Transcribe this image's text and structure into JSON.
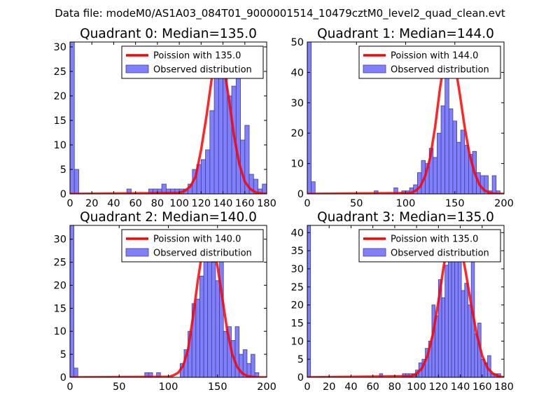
{
  "figure": {
    "suptitle": "Data file: modeM0/AS1A03_084T01_9000001514_10479cztM0_level2_quad_clean.evt"
  },
  "colors": {
    "bar_fill": "#8080ff",
    "bar_edge": "#3f3f8f",
    "curve": "#ff0000",
    "axes": "#000000",
    "background": "#ffffff"
  },
  "chart_data": [
    {
      "type": "bar",
      "title": "Quadrant 0: Median=135.0",
      "xlim": [
        0,
        180
      ],
      "ylim": [
        0,
        31
      ],
      "xticks": [
        0,
        20,
        40,
        60,
        80,
        100,
        120,
        140,
        160,
        180
      ],
      "yticks": [
        0,
        5,
        10,
        15,
        20,
        25,
        30
      ],
      "legend": {
        "position": "upper-right",
        "curve_label": "Poission with 135.0",
        "bars_label": "Observed distribution"
      },
      "bin_width": 4,
      "histogram": {
        "x": [
          0,
          4,
          52,
          56,
          60,
          64,
          68,
          72,
          76,
          80,
          84,
          88,
          92,
          96,
          100,
          104,
          108,
          112,
          116,
          120,
          124,
          128,
          132,
          136,
          140,
          144,
          148,
          152,
          156,
          160,
          164,
          168,
          172,
          176
        ],
        "y": [
          31,
          5,
          1,
          0,
          0,
          0,
          0,
          1,
          1,
          1,
          2,
          1,
          1,
          1,
          1,
          1,
          2,
          5,
          6,
          7,
          9,
          17,
          25,
          30,
          26,
          20,
          22,
          24,
          11,
          14,
          4,
          3,
          1,
          2
        ]
      },
      "curve": {
        "x": [
          0,
          100,
          105,
          110,
          115,
          120,
          125,
          130,
          135,
          140,
          145,
          150,
          155,
          160,
          165,
          170,
          175,
          180
        ],
        "y": [
          0,
          0.2,
          0.6,
          1.5,
          3.5,
          9,
          16,
          24,
          29,
          27,
          20,
          12,
          6,
          2.5,
          1,
          0.3,
          0.1,
          0
        ]
      }
    },
    {
      "type": "bar",
      "title": "Quadrant 1: Median=144.0",
      "xlim": [
        0,
        200
      ],
      "ylim": [
        0,
        50
      ],
      "xticks": [
        0,
        50,
        100,
        150,
        200
      ],
      "yticks": [
        0,
        10,
        20,
        30,
        40,
        50
      ],
      "legend": {
        "position": "upper-right",
        "curve_label": "Poission with 144.0",
        "bars_label": "Observed distribution"
      },
      "bin_width": 4,
      "histogram": {
        "x": [
          0,
          4,
          68,
          88,
          96,
          100,
          104,
          108,
          112,
          116,
          120,
          124,
          128,
          132,
          136,
          140,
          144,
          148,
          152,
          156,
          160,
          164,
          168,
          172,
          176,
          180,
          184,
          188,
          192
        ],
        "y": [
          50,
          4,
          1,
          2,
          1,
          1,
          2,
          3,
          7,
          11,
          10,
          15,
          12,
          20,
          29,
          38,
          28,
          24,
          17,
          21,
          16,
          13,
          14,
          7,
          6,
          6,
          1,
          6,
          1
        ]
      },
      "curve": {
        "x": [
          0,
          105,
          110,
          115,
          120,
          125,
          130,
          135,
          140,
          145,
          150,
          155,
          160,
          165,
          170,
          175,
          180,
          185,
          190,
          200
        ],
        "y": [
          0,
          0.3,
          1,
          2.5,
          6,
          12,
          22,
          35,
          45,
          48,
          43,
          33,
          22,
          13,
          7,
          3,
          1.2,
          0.4,
          0.1,
          0
        ]
      }
    },
    {
      "type": "bar",
      "title": "Quadrant 2: Median=140.0",
      "xlim": [
        0,
        200
      ],
      "ylim": [
        0,
        33
      ],
      "xticks": [
        0,
        50,
        100,
        150,
        200
      ],
      "yticks": [
        0,
        5,
        10,
        15,
        20,
        25,
        30
      ],
      "legend": {
        "position": "upper-right",
        "curve_label": "Poission with 140.0",
        "bars_label": "Observed distribution"
      },
      "bin_width": 4,
      "histogram": {
        "x": [
          0,
          4,
          76,
          80,
          88,
          112,
          116,
          120,
          124,
          128,
          132,
          136,
          140,
          144,
          148,
          152,
          156,
          160,
          164,
          168,
          172,
          176,
          180,
          184,
          188
        ],
        "y": [
          33,
          2,
          1,
          1,
          1,
          3,
          6,
          10,
          16,
          17,
          22,
          26,
          31,
          25,
          21,
          28,
          10,
          11,
          8,
          11,
          5,
          6,
          3,
          5,
          1
        ]
      },
      "curve": {
        "x": [
          0,
          100,
          105,
          110,
          115,
          120,
          125,
          130,
          135,
          140,
          145,
          150,
          155,
          160,
          165,
          170,
          175,
          180,
          185,
          190,
          200
        ],
        "y": [
          0,
          0.1,
          0.4,
          1,
          2.5,
          6,
          13,
          21,
          28,
          31,
          30,
          24,
          17,
          10,
          5,
          2.2,
          0.9,
          0.3,
          0.1,
          0,
          0
        ]
      }
    },
    {
      "type": "bar",
      "title": "Quadrant 3: Median=135.0",
      "xlim": [
        0,
        180
      ],
      "ylim": [
        0,
        42
      ],
      "xticks": [
        0,
        20,
        40,
        60,
        80,
        100,
        120,
        140,
        160,
        180
      ],
      "yticks": [
        0,
        5,
        10,
        15,
        20,
        25,
        30,
        35,
        40
      ],
      "legend": {
        "position": "upper-right",
        "curve_label": "Poission with 135.0",
        "bars_label": "Observed distribution"
      },
      "bin_width": 3,
      "histogram": {
        "x": [
          0,
          66,
          87,
          90,
          93,
          96,
          99,
          102,
          105,
          108,
          111,
          114,
          117,
          120,
          123,
          126,
          129,
          132,
          135,
          138,
          141,
          144,
          147,
          150,
          153,
          156,
          159,
          162,
          165,
          168,
          171,
          174
        ],
        "y": [
          42,
          1,
          1,
          1,
          1,
          1,
          2,
          4,
          5,
          8,
          10,
          20,
          17,
          27,
          22,
          31,
          33,
          36,
          38,
          35,
          24,
          26,
          20,
          32,
          12,
          15,
          5,
          4,
          6,
          1,
          1,
          1
        ]
      },
      "curve": {
        "x": [
          0,
          95,
          100,
          105,
          110,
          115,
          120,
          125,
          130,
          135,
          140,
          145,
          150,
          155,
          160,
          165,
          170,
          175,
          180
        ],
        "y": [
          0,
          0.3,
          1,
          2.5,
          6,
          12,
          21,
          31,
          38,
          40,
          37,
          29,
          20,
          12,
          6,
          2.5,
          1,
          0.3,
          0
        ]
      }
    }
  ]
}
